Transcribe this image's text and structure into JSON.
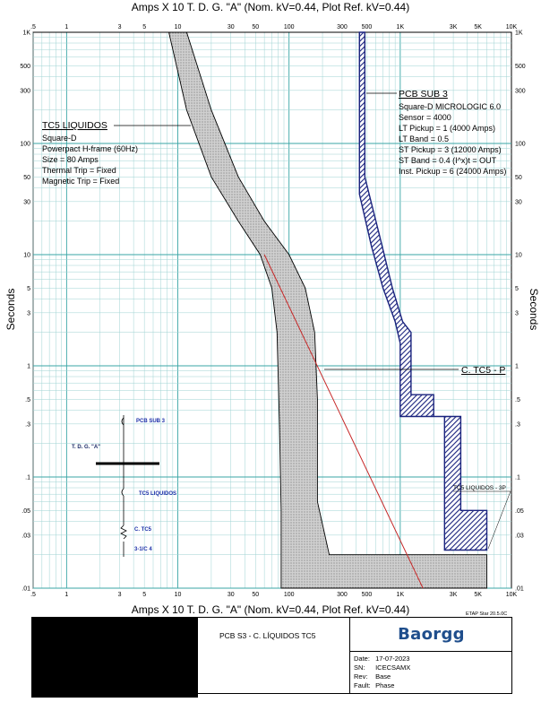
{
  "chart_data": {
    "type": "line",
    "title_top": "Amps  X  10   T. D. G. \"A\" (Nom. kV=0.44, Plot Ref. kV=0.44)",
    "title_bottom": "Amps  X  10   T. D. G. \"A\" (Nom. kV=0.44, Plot Ref. kV=0.44)",
    "ylabel": "Seconds",
    "x_scale": "log",
    "y_scale": "log",
    "xlim": [
      0.5,
      10000
    ],
    "ylim": [
      0.01,
      1000
    ],
    "x_ticks": [
      {
        "v": 0.5,
        "t": ".5"
      },
      {
        "v": 1,
        "t": "1"
      },
      {
        "v": 3,
        "t": "3"
      },
      {
        "v": 5,
        "t": "5"
      },
      {
        "v": 10,
        "t": "10"
      },
      {
        "v": 30,
        "t": "30"
      },
      {
        "v": 50,
        "t": "50"
      },
      {
        "v": 100,
        "t": "100"
      },
      {
        "v": 300,
        "t": "300"
      },
      {
        "v": 500,
        "t": "500"
      },
      {
        "v": 1000,
        "t": "1K"
      },
      {
        "v": 3000,
        "t": "3K"
      },
      {
        "v": 5000,
        "t": "5K"
      },
      {
        "v": 10000,
        "t": "10K"
      }
    ],
    "y_ticks": [
      {
        "v": 1000,
        "t": "1K"
      },
      {
        "v": 500,
        "t": "500"
      },
      {
        "v": 300,
        "t": "300"
      },
      {
        "v": 100,
        "t": "100"
      },
      {
        "v": 50,
        "t": "50"
      },
      {
        "v": 30,
        "t": "30"
      },
      {
        "v": 10,
        "t": "10"
      },
      {
        "v": 5,
        "t": "5"
      },
      {
        "v": 3,
        "t": "3"
      },
      {
        "v": 1,
        "t": "1"
      },
      {
        "v": 0.5,
        "t": ".5"
      },
      {
        "v": 0.3,
        "t": ".3"
      },
      {
        "v": 0.1,
        "t": ".1"
      },
      {
        "v": 0.05,
        "t": ".05"
      },
      {
        "v": 0.03,
        "t": ".03"
      },
      {
        "v": 0.01,
        "t": ".01"
      }
    ],
    "series": [
      {
        "name": "TC5 LIQUIDOS",
        "color": "#000000",
        "fill": "#c8c8c8",
        "band_left": [
          [
            8.3,
            1000
          ],
          [
            12,
            200
          ],
          [
            20,
            50
          ],
          [
            35,
            20
          ],
          [
            55,
            10
          ],
          [
            70,
            5
          ],
          [
            78,
            2
          ],
          [
            82,
            0.3
          ],
          [
            85,
            0.05
          ],
          [
            85,
            0.01
          ]
        ],
        "band_right": [
          [
            12,
            1000
          ],
          [
            20,
            200
          ],
          [
            35,
            50
          ],
          [
            60,
            20
          ],
          [
            100,
            10
          ],
          [
            140,
            5
          ],
          [
            170,
            2
          ],
          [
            180,
            0.5
          ],
          [
            180,
            0.06
          ],
          [
            230,
            0.02
          ],
          [
            6000,
            0.02
          ],
          [
            6000,
            0.01
          ]
        ]
      },
      {
        "name": "PCB SUB 3",
        "color": "#1a237e",
        "fill": "#2e3d8f",
        "band_left": [
          [
            430,
            1000
          ],
          [
            430,
            35
          ],
          [
            550,
            12
          ],
          [
            700,
            5
          ],
          [
            900,
            2.5
          ],
          [
            1000,
            1.6
          ],
          [
            1000,
            0.35
          ],
          [
            2500,
            0.35
          ],
          [
            2500,
            0.022
          ]
        ],
        "band_right": [
          [
            480,
            1000
          ],
          [
            480,
            50
          ],
          [
            650,
            15
          ],
          [
            850,
            5
          ],
          [
            1050,
            2.5
          ],
          [
            1250,
            2
          ],
          [
            1250,
            0.55
          ],
          [
            2000,
            0.55
          ],
          [
            2000,
            0.35
          ],
          [
            3500,
            0.35
          ],
          [
            3500,
            0.05
          ],
          [
            6000,
            0.05
          ],
          [
            6000,
            0.022
          ]
        ]
      },
      {
        "name": "C. TC5 - P",
        "color": "#c62828",
        "points": [
          [
            60,
            10
          ],
          [
            1600,
            0.01
          ]
        ]
      }
    ],
    "annotations": [
      {
        "id": "tc5",
        "title": "TC5 LIQUIDOS",
        "lines": [
          "Square-D",
          "Powerpact H-frame (60Hz)",
          "Size = 80 Amps",
          "Thermal Trip = Fixed",
          "Magnetic Trip = Fixed"
        ]
      },
      {
        "id": "pcb",
        "title": "PCB SUB 3",
        "lines": [
          "Square-D  MICROLOGIC 6.0",
          "Sensor = 4000",
          "LT Pickup = 1 (4000 Amps)",
          "LT Band = 0.5",
          "ST Pickup = 3 (12000 Amps)",
          "ST Band = 0.4  (I^x)t = OUT",
          "Inst. Pickup = 6 (24000 Amps)"
        ]
      },
      {
        "id": "ctc5",
        "title": "C. TC5 - P"
      },
      {
        "id": "tc5small",
        "title": "TC5 LIQUIDOS - 3P"
      }
    ],
    "one_line": {
      "labels": [
        "PCB SUB 3",
        "T. D. G. \"A\"",
        "TC5 LIQUIDOS",
        "C. TC5",
        "3-1/C 4"
      ]
    }
  },
  "title_block": {
    "description": "PCB S3 - C. LÍQUIDOS TC5",
    "logo": "Baorgg",
    "software": "ETAP Star 20.5.0C",
    "date_label": "Date:",
    "date": "17-07-2023",
    "sn_label": "SN:",
    "sn": "ICECSAMX",
    "rev_label": "Rev:",
    "rev": "Base",
    "fault_label": "Fault:",
    "fault": "Phase"
  }
}
